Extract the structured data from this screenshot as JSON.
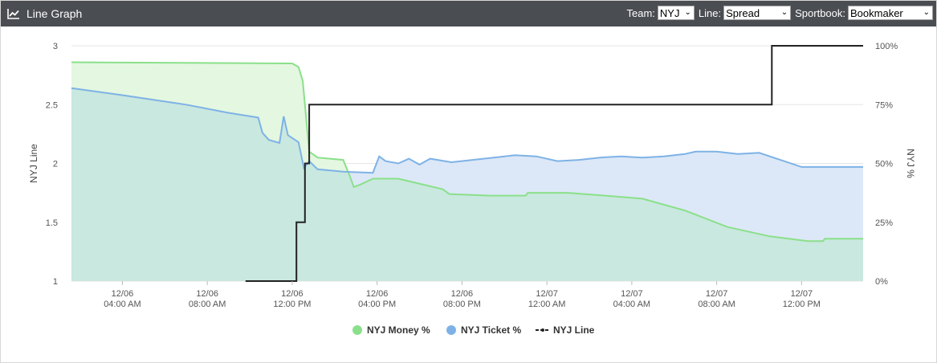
{
  "header": {
    "title": "Line Graph",
    "title_icon": "line-chart-icon",
    "team_label": "Team:",
    "team_value": "NYJ",
    "line_label": "Line:",
    "line_value": "Spread",
    "sportbook_label": "Sportbook:",
    "sportbook_value": "Bookmaker"
  },
  "colors": {
    "money": "#8ae08a",
    "money_fill": "#e4f7e0",
    "ticket": "#7eb2e6",
    "ticket_fill": "#dce8f7",
    "overlap_fill": "#c9e8df",
    "line": "#222222",
    "header_bg": "#4a4d52"
  },
  "chart_data": {
    "type": "line",
    "x_unit": "hours after 12/06 12:00 AM",
    "xlim": [
      1.6,
      38.9
    ],
    "x_ticks": [
      {
        "x": 4,
        "line1": "12/06",
        "line2": "04:00 AM"
      },
      {
        "x": 8,
        "line1": "12/06",
        "line2": "08:00 AM"
      },
      {
        "x": 12,
        "line1": "12/06",
        "line2": "12:00 PM"
      },
      {
        "x": 16,
        "line1": "12/06",
        "line2": "04:00 PM"
      },
      {
        "x": 20,
        "line1": "12/06",
        "line2": "08:00 PM"
      },
      {
        "x": 24,
        "line1": "12/07",
        "line2": "12:00 AM"
      },
      {
        "x": 28,
        "line1": "12/07",
        "line2": "04:00 AM"
      },
      {
        "x": 32,
        "line1": "12/07",
        "line2": "08:00 AM"
      },
      {
        "x": 36,
        "line1": "12/07",
        "line2": "12:00 PM"
      }
    ],
    "y_left": {
      "label": "NYJ Line",
      "min": 1,
      "max": 3,
      "ticks": [
        1,
        1.5,
        2,
        2.5,
        3
      ]
    },
    "y_right": {
      "label": "NYJ %",
      "min": 0,
      "max": 100,
      "ticks": [
        {
          "v": 0,
          "t": "0%"
        },
        {
          "v": 25,
          "t": "25%"
        },
        {
          "v": 50,
          "t": "50%"
        },
        {
          "v": 75,
          "t": "75%"
        },
        {
          "v": 100,
          "t": "100%"
        }
      ]
    },
    "grid": true,
    "legend_position": "bottom",
    "series": [
      {
        "name": "NYJ Money %",
        "axis": "right",
        "kind": "area",
        "points": [
          [
            1.6,
            93
          ],
          [
            12.0,
            92.5
          ],
          [
            12.3,
            91
          ],
          [
            12.5,
            85
          ],
          [
            12.65,
            70
          ],
          [
            12.8,
            55
          ],
          [
            13.2,
            52.5
          ],
          [
            14.4,
            51.5
          ],
          [
            14.7,
            45
          ],
          [
            14.9,
            40
          ],
          [
            15.2,
            41
          ],
          [
            15.8,
            43.5
          ],
          [
            17.0,
            43.5
          ],
          [
            19.1,
            39
          ],
          [
            19.4,
            37
          ],
          [
            21.3,
            36.3
          ],
          [
            23.0,
            36.3
          ],
          [
            23.1,
            37.5
          ],
          [
            25.0,
            37.5
          ],
          [
            26.5,
            36.5
          ],
          [
            28.5,
            35
          ],
          [
            30.5,
            30
          ],
          [
            32.5,
            23
          ],
          [
            34.5,
            19
          ],
          [
            36.3,
            17
          ],
          [
            37.0,
            17
          ],
          [
            37.1,
            18
          ],
          [
            38.9,
            18
          ]
        ]
      },
      {
        "name": "NYJ Ticket %",
        "axis": "right",
        "kind": "area",
        "points": [
          [
            1.6,
            82
          ],
          [
            4.0,
            79
          ],
          [
            7.0,
            75
          ],
          [
            9.0,
            71.5
          ],
          [
            10.4,
            69.5
          ],
          [
            10.6,
            63
          ],
          [
            10.9,
            60
          ],
          [
            11.4,
            58.7
          ],
          [
            11.6,
            70
          ],
          [
            11.8,
            62
          ],
          [
            12.3,
            59
          ],
          [
            12.55,
            48
          ],
          [
            12.8,
            51
          ],
          [
            13.2,
            47.5
          ],
          [
            14.4,
            46.5
          ],
          [
            15.8,
            46
          ],
          [
            16.1,
            53
          ],
          [
            16.4,
            51
          ],
          [
            17.0,
            50
          ],
          [
            17.5,
            52
          ],
          [
            18.0,
            49.5
          ],
          [
            18.5,
            52
          ],
          [
            19.5,
            50.5
          ],
          [
            20.5,
            51.5
          ],
          [
            21.5,
            52.5
          ],
          [
            22.5,
            53.5
          ],
          [
            23.5,
            53
          ],
          [
            24.5,
            51
          ],
          [
            25.5,
            51.5
          ],
          [
            26.5,
            52.5
          ],
          [
            27.5,
            53
          ],
          [
            28.5,
            52.5
          ],
          [
            29.5,
            53
          ],
          [
            30.5,
            54
          ],
          [
            31.0,
            55
          ],
          [
            32.0,
            55
          ],
          [
            33.0,
            54
          ],
          [
            34.0,
            54.5
          ],
          [
            35.0,
            51.5
          ],
          [
            36.0,
            48.5
          ],
          [
            37.0,
            48.5
          ],
          [
            38.0,
            48.5
          ],
          [
            38.9,
            48.5
          ]
        ]
      },
      {
        "name": "NYJ Line",
        "axis": "left",
        "kind": "step",
        "points": [
          [
            9.8,
            1
          ],
          [
            12.2,
            1
          ],
          [
            12.2,
            1.5
          ],
          [
            12.6,
            1.5
          ],
          [
            12.6,
            2
          ],
          [
            12.8,
            2
          ],
          [
            12.8,
            2.5
          ],
          [
            34.6,
            2.5
          ],
          [
            34.6,
            3
          ],
          [
            38.9,
            3
          ]
        ]
      }
    ]
  }
}
